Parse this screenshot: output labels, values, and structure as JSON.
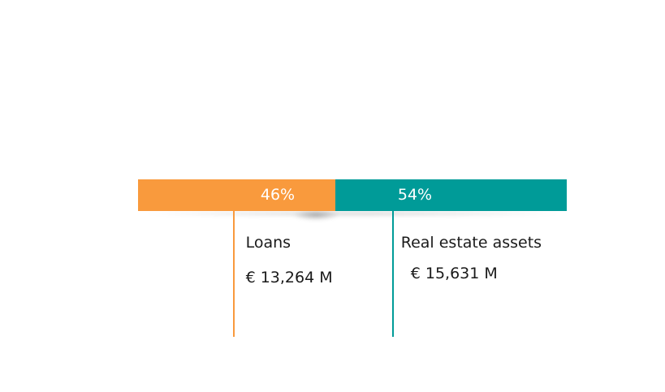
{
  "chart_data": {
    "type": "bar",
    "orientation": "horizontal-stacked",
    "categories": [
      "Loans",
      "Real estate assets"
    ],
    "values_percent": [
      46,
      54
    ],
    "percent_labels": [
      "46%",
      "54%"
    ],
    "amounts": [
      13264,
      15631
    ],
    "amount_labels": [
      "€ 13,264 M",
      "€ 15,631 M"
    ],
    "colors": [
      "#f99a3d",
      "#009b98"
    ]
  }
}
